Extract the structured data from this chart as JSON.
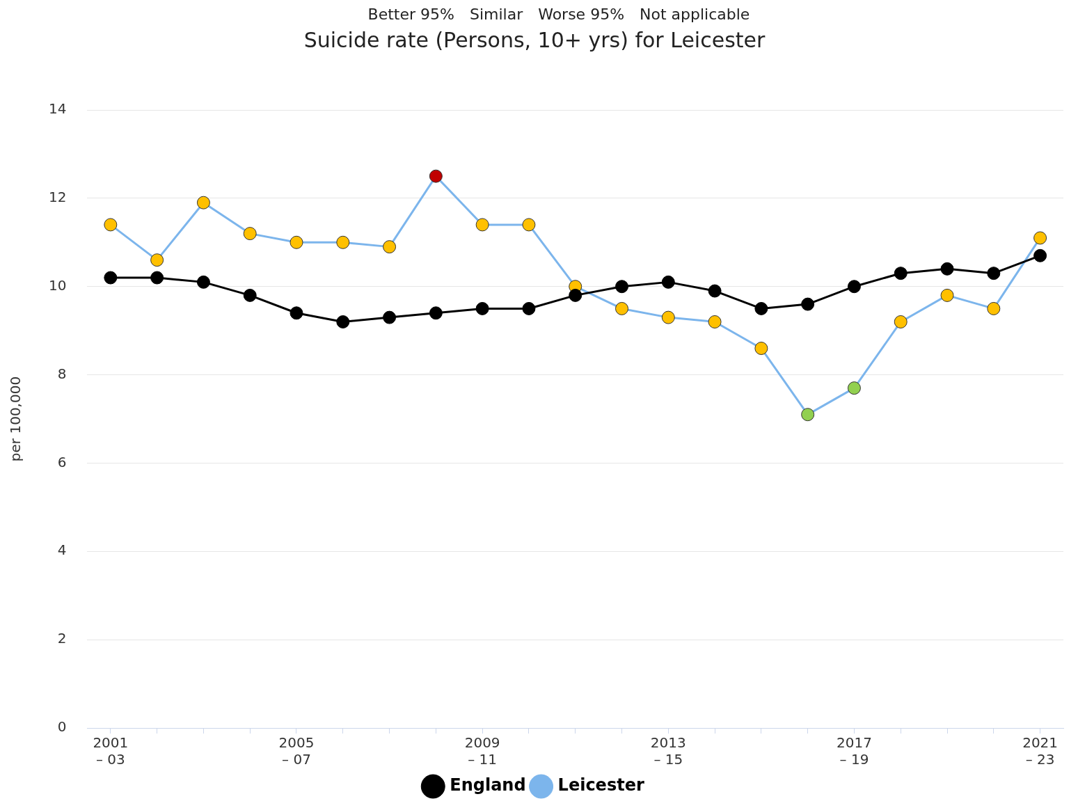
{
  "chart_data": {
    "type": "line",
    "title": "Suicide rate (Persons, 10+ yrs) for Leicester",
    "ylabel": "per 100,000",
    "annotations": [
      "Better 95%",
      "Similar",
      "Worse 95%",
      "Not applicable"
    ],
    "categories": [
      "2001\n– 03",
      null,
      null,
      null,
      "2005\n– 07",
      null,
      null,
      null,
      "2009\n– 11",
      null,
      null,
      null,
      "2013\n– 15",
      null,
      null,
      null,
      "2017\n– 19",
      null,
      null,
      null,
      "2021\n– 23"
    ],
    "series": [
      {
        "name": "England",
        "color": "#000000",
        "values": [
          10.2,
          10.2,
          10.1,
          9.8,
          9.4,
          9.2,
          9.3,
          9.4,
          9.5,
          9.5,
          9.8,
          10.0,
          10.1,
          9.9,
          9.5,
          9.6,
          10.0,
          10.3,
          10.4,
          10.3,
          10.7
        ]
      },
      {
        "name": "Leicester",
        "color": "#7cb5ec",
        "colors": [
          "#ffc000",
          "#ffc000",
          "#ffc000",
          "#ffc000",
          "#ffc000",
          "#ffc000",
          "#ffc000",
          "#c00000",
          "#ffc000",
          "#ffc000",
          "#ffc000",
          "#ffc000",
          "#ffc000",
          "#ffc000",
          "#ffc000",
          "#92d050",
          "#92d050",
          "#ffc000",
          "#ffc000",
          "#ffc000",
          "#ffc000"
        ],
        "values": [
          11.4,
          10.6,
          11.9,
          11.2,
          11.0,
          11.0,
          10.9,
          12.5,
          11.4,
          11.4,
          10.0,
          9.5,
          9.3,
          9.2,
          8.6,
          7.1,
          7.7,
          9.2,
          9.8,
          9.5,
          11.1
        ]
      }
    ],
    "ylim": [
      0,
      14
    ],
    "yticks": [
      0,
      2,
      4,
      6,
      8,
      10,
      12,
      14
    ],
    "grid": "y",
    "legend": "bottom",
    "marker": "circle",
    "line_style": "solid"
  }
}
